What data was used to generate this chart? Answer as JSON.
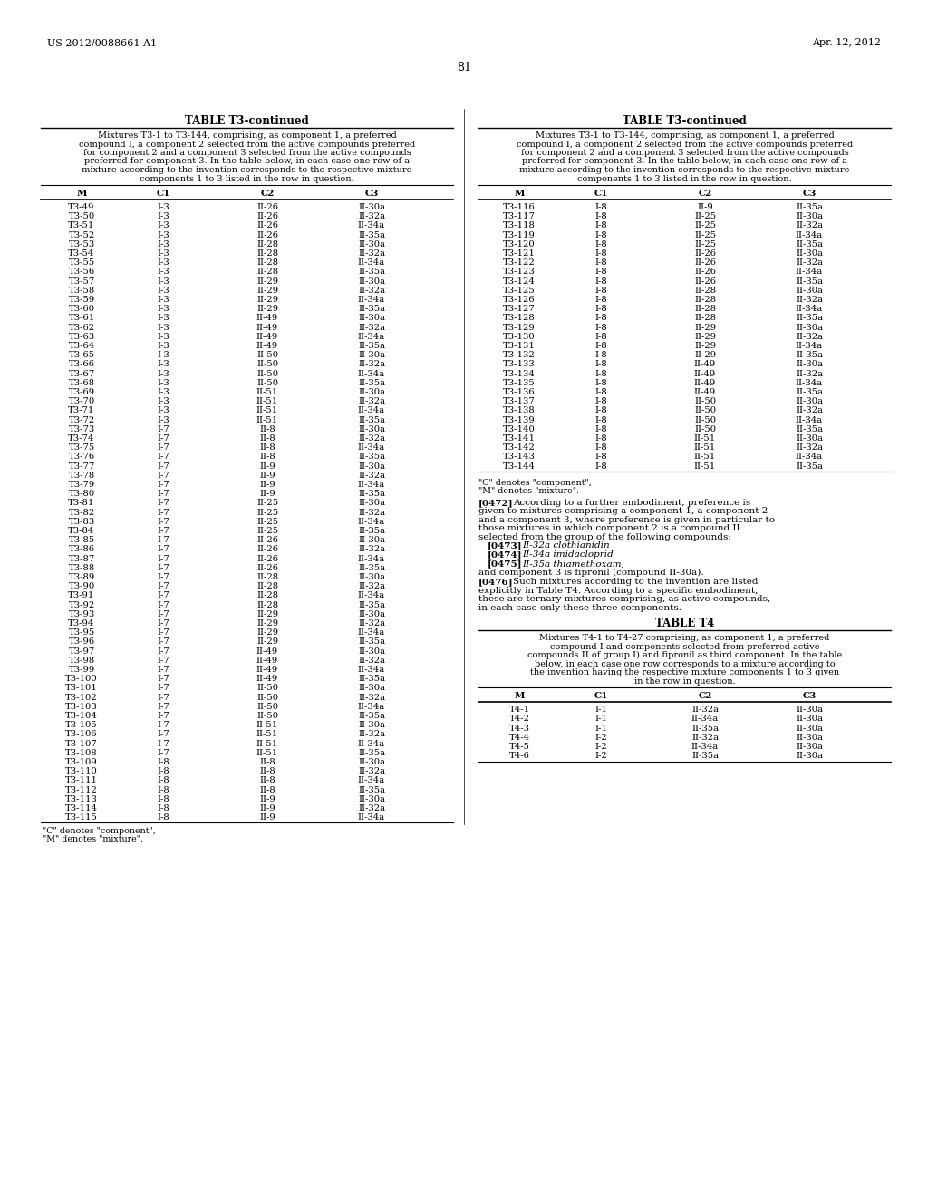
{
  "header_left": "US 2012/0088661 A1",
  "header_right": "Apr. 12, 2012",
  "page_number": "81",
  "table_title": "TABLE T3-continued",
  "table_caption_lines": [
    "Mixtures T3-1 to T3-144, comprising, as component 1, a preferred",
    "compound I, a component 2 selected from the active compounds preferred",
    "for component 2 and a component 3 selected from the active compounds",
    "preferred for component 3. In the table below, in each case one row of a",
    "mixture according to the invention corresponds to the respective mixture",
    "components 1 to 3 listed in the row in question."
  ],
  "col_headers": [
    "M",
    "C1",
    "C2",
    "C3"
  ],
  "left_table_data": [
    [
      "T3-49",
      "I-3",
      "II-26",
      "II-30a"
    ],
    [
      "T3-50",
      "I-3",
      "II-26",
      "II-32a"
    ],
    [
      "T3-51",
      "I-3",
      "II-26",
      "II-34a"
    ],
    [
      "T3-52",
      "I-3",
      "II-26",
      "II-35a"
    ],
    [
      "T3-53",
      "I-3",
      "II-28",
      "II-30a"
    ],
    [
      "T3-54",
      "I-3",
      "II-28",
      "II-32a"
    ],
    [
      "T3-55",
      "I-3",
      "II-28",
      "II-34a"
    ],
    [
      "T3-56",
      "I-3",
      "II-28",
      "II-35a"
    ],
    [
      "T3-57",
      "I-3",
      "II-29",
      "II-30a"
    ],
    [
      "T3-58",
      "I-3",
      "II-29",
      "II-32a"
    ],
    [
      "T3-59",
      "I-3",
      "II-29",
      "II-34a"
    ],
    [
      "T3-60",
      "I-3",
      "II-29",
      "II-35a"
    ],
    [
      "T3-61",
      "I-3",
      "II-49",
      "II-30a"
    ],
    [
      "T3-62",
      "I-3",
      "II-49",
      "II-32a"
    ],
    [
      "T3-63",
      "I-3",
      "II-49",
      "II-34a"
    ],
    [
      "T3-64",
      "I-3",
      "II-49",
      "II-35a"
    ],
    [
      "T3-65",
      "I-3",
      "II-50",
      "II-30a"
    ],
    [
      "T3-66",
      "I-3",
      "II-50",
      "II-32a"
    ],
    [
      "T3-67",
      "I-3",
      "II-50",
      "II-34a"
    ],
    [
      "T3-68",
      "I-3",
      "II-50",
      "II-35a"
    ],
    [
      "T3-69",
      "I-3",
      "II-51",
      "II-30a"
    ],
    [
      "T3-70",
      "I-3",
      "II-51",
      "II-32a"
    ],
    [
      "T3-71",
      "I-3",
      "II-51",
      "II-34a"
    ],
    [
      "T3-72",
      "I-3",
      "II-51",
      "II-35a"
    ],
    [
      "T3-73",
      "I-7",
      "II-8",
      "II-30a"
    ],
    [
      "T3-74",
      "I-7",
      "II-8",
      "II-32a"
    ],
    [
      "T3-75",
      "I-7",
      "II-8",
      "II-34a"
    ],
    [
      "T3-76",
      "I-7",
      "II-8",
      "II-35a"
    ],
    [
      "T3-77",
      "I-7",
      "II-9",
      "II-30a"
    ],
    [
      "T3-78",
      "I-7",
      "II-9",
      "II-32a"
    ],
    [
      "T3-79",
      "I-7",
      "II-9",
      "II-34a"
    ],
    [
      "T3-80",
      "I-7",
      "II-9",
      "II-35a"
    ],
    [
      "T3-81",
      "I-7",
      "II-25",
      "II-30a"
    ],
    [
      "T3-82",
      "I-7",
      "II-25",
      "II-32a"
    ],
    [
      "T3-83",
      "I-7",
      "II-25",
      "II-34a"
    ],
    [
      "T3-84",
      "I-7",
      "II-25",
      "II-35a"
    ],
    [
      "T3-85",
      "I-7",
      "II-26",
      "II-30a"
    ],
    [
      "T3-86",
      "I-7",
      "II-26",
      "II-32a"
    ],
    [
      "T3-87",
      "I-7",
      "II-26",
      "II-34a"
    ],
    [
      "T3-88",
      "I-7",
      "II-26",
      "II-35a"
    ],
    [
      "T3-89",
      "I-7",
      "II-28",
      "II-30a"
    ],
    [
      "T3-90",
      "I-7",
      "II-28",
      "II-32a"
    ],
    [
      "T3-91",
      "I-7",
      "II-28",
      "II-34a"
    ],
    [
      "T3-92",
      "I-7",
      "II-28",
      "II-35a"
    ],
    [
      "T3-93",
      "I-7",
      "II-29",
      "II-30a"
    ],
    [
      "T3-94",
      "I-7",
      "II-29",
      "II-32a"
    ],
    [
      "T3-95",
      "I-7",
      "II-29",
      "II-34a"
    ],
    [
      "T3-96",
      "I-7",
      "II-29",
      "II-35a"
    ],
    [
      "T3-97",
      "I-7",
      "II-49",
      "II-30a"
    ],
    [
      "T3-98",
      "I-7",
      "II-49",
      "II-32a"
    ],
    [
      "T3-99",
      "I-7",
      "II-49",
      "II-34a"
    ],
    [
      "T3-100",
      "I-7",
      "II-49",
      "II-35a"
    ],
    [
      "T3-101",
      "I-7",
      "II-50",
      "II-30a"
    ],
    [
      "T3-102",
      "I-7",
      "II-50",
      "II-32a"
    ],
    [
      "T3-103",
      "I-7",
      "II-50",
      "II-34a"
    ],
    [
      "T3-104",
      "I-7",
      "II-50",
      "II-35a"
    ],
    [
      "T3-105",
      "I-7",
      "II-51",
      "II-30a"
    ],
    [
      "T3-106",
      "I-7",
      "II-51",
      "II-32a"
    ],
    [
      "T3-107",
      "I-7",
      "II-51",
      "II-34a"
    ],
    [
      "T3-108",
      "I-7",
      "II-51",
      "II-35a"
    ],
    [
      "T3-109",
      "I-8",
      "II-8",
      "II-30a"
    ],
    [
      "T3-110",
      "I-8",
      "II-8",
      "II-32a"
    ],
    [
      "T3-111",
      "I-8",
      "II-8",
      "II-34a"
    ],
    [
      "T3-112",
      "I-8",
      "II-8",
      "II-35a"
    ],
    [
      "T3-113",
      "I-8",
      "II-9",
      "II-30a"
    ],
    [
      "T3-114",
      "I-8",
      "II-9",
      "II-32a"
    ],
    [
      "T3-115",
      "I-8",
      "II-9",
      "II-34a"
    ]
  ],
  "right_table_data": [
    [
      "T3-116",
      "I-8",
      "II-9",
      "II-35a"
    ],
    [
      "T3-117",
      "I-8",
      "II-25",
      "II-30a"
    ],
    [
      "T3-118",
      "I-8",
      "II-25",
      "II-32a"
    ],
    [
      "T3-119",
      "I-8",
      "II-25",
      "II-34a"
    ],
    [
      "T3-120",
      "I-8",
      "II-25",
      "II-35a"
    ],
    [
      "T3-121",
      "I-8",
      "II-26",
      "II-30a"
    ],
    [
      "T3-122",
      "I-8",
      "II-26",
      "II-32a"
    ],
    [
      "T3-123",
      "I-8",
      "II-26",
      "II-34a"
    ],
    [
      "T3-124",
      "I-8",
      "II-26",
      "II-35a"
    ],
    [
      "T3-125",
      "I-8",
      "II-28",
      "II-30a"
    ],
    [
      "T3-126",
      "I-8",
      "II-28",
      "II-32a"
    ],
    [
      "T3-127",
      "I-8",
      "II-28",
      "II-34a"
    ],
    [
      "T3-128",
      "I-8",
      "II-28",
      "II-35a"
    ],
    [
      "T3-129",
      "I-8",
      "II-29",
      "II-30a"
    ],
    [
      "T3-130",
      "I-8",
      "II-29",
      "II-32a"
    ],
    [
      "T3-131",
      "I-8",
      "II-29",
      "II-34a"
    ],
    [
      "T3-132",
      "I-8",
      "II-29",
      "II-35a"
    ],
    [
      "T3-133",
      "I-8",
      "II-49",
      "II-30a"
    ],
    [
      "T3-134",
      "I-8",
      "II-49",
      "II-32a"
    ],
    [
      "T3-135",
      "I-8",
      "II-49",
      "II-34a"
    ],
    [
      "T3-136",
      "I-8",
      "II-49",
      "II-35a"
    ],
    [
      "T3-137",
      "I-8",
      "II-50",
      "II-30a"
    ],
    [
      "T3-138",
      "I-8",
      "II-50",
      "II-32a"
    ],
    [
      "T3-139",
      "I-8",
      "II-50",
      "II-34a"
    ],
    [
      "T3-140",
      "I-8",
      "II-50",
      "II-35a"
    ],
    [
      "T3-141",
      "I-8",
      "II-51",
      "II-30a"
    ],
    [
      "T3-142",
      "I-8",
      "II-51",
      "II-32a"
    ],
    [
      "T3-143",
      "I-8",
      "II-51",
      "II-34a"
    ],
    [
      "T3-144",
      "I-8",
      "II-51",
      "II-35a"
    ]
  ],
  "footnote1": "\"C\" denotes \"component\",",
  "footnote2": "\"M\" denotes \"mixture\".",
  "para_0472_label": "[0472]",
  "para_0472_lines": [
    "According to a further embodiment, preference is",
    "given to mixtures comprising a component 1, a component 2",
    "and a component 3, where preference is given in particular to",
    "those mixtures in which component 2 is a compound II",
    "selected from the group of the following compounds:"
  ],
  "para_0473_label": "[0473]",
  "para_0473_text": "II-32a clothianidin",
  "para_0474_label": "[0474]",
  "para_0474_text": "II-34a imidacloprid",
  "para_0475_label": "[0475]",
  "para_0475_text": "II-35a thiamethoxam,",
  "para_0476_cont": "and component 3 is fipronil (compound II-30a).",
  "para_0476_label": "[0476]",
  "para_0476_lines": [
    "Such mixtures according to the invention are listed",
    "explicitly in Table T4. According to a specific embodiment,",
    "these are ternary mixtures comprising, as active compounds,",
    "in each case only these three components."
  ],
  "table4_title": "TABLE T4",
  "table4_caption_lines": [
    "Mixtures T4-1 to T4-27 comprising, as component 1, a preferred",
    "compound I and components selected from preferred active",
    "compounds II of group I) and fipronil as third component. In the table",
    "below, in each case one row corresponds to a mixture according to",
    "the invention having the respective mixture components 1 to 3 given",
    "in the row in question."
  ],
  "table4_col_headers": [
    "M",
    "C1",
    "C2",
    "C3"
  ],
  "table4_data": [
    [
      "T4-1",
      "I-1",
      "II-32a",
      "II-30a"
    ],
    [
      "T4-2",
      "I-1",
      "II-34a",
      "II-30a"
    ],
    [
      "T4-3",
      "I-1",
      "II-35a",
      "II-30a"
    ],
    [
      "T4-4",
      "I-2",
      "II-32a",
      "II-30a"
    ],
    [
      "T4-5",
      "I-2",
      "II-34a",
      "II-30a"
    ],
    [
      "T4-6",
      "I-2",
      "II-35a",
      "II-30a"
    ]
  ],
  "bg_color": "#ffffff",
  "text_color": "#000000"
}
